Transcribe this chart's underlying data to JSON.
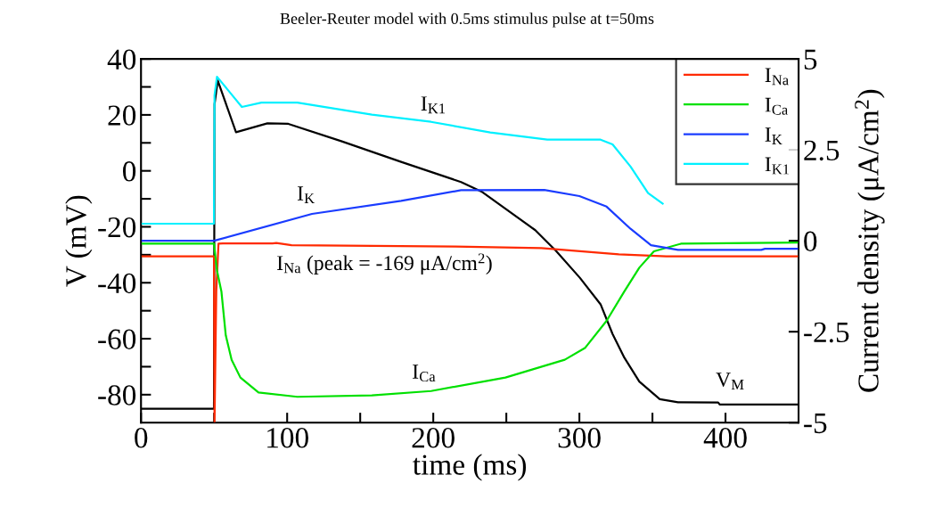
{
  "chart_data": {
    "type": "line",
    "title": "Beeler-Reuter model with 0.5ms stimulus pulse at t=50ms",
    "xlabel": "time (ms)",
    "ylabel": "V (mV)",
    "y2label": "Current density (μA/cm$^{2}$)",
    "xlim": [
      0,
      450
    ],
    "xticks": [
      0,
      {
        "value": 50,
        "label": null
      },
      100,
      {
        "value": 150,
        "label": null
      },
      200,
      {
        "value": 250,
        "label": null
      },
      300,
      {
        "value": 350,
        "label": null
      },
      400
    ],
    "ylim": [
      -90,
      40
    ],
    "yticks": [
      -80,
      {
        "value": -70,
        "label": null
      },
      -60,
      {
        "value": -50,
        "label": null
      },
      -40,
      {
        "value": -30,
        "label": null
      },
      -20,
      {
        "value": -10,
        "label": null
      },
      0,
      {
        "value": 10,
        "label": null
      },
      20,
      {
        "value": 30,
        "label": null
      },
      40
    ],
    "y2lim": [
      -5,
      5
    ],
    "y2ticks": [
      -5,
      -2.5,
      0,
      2.5,
      5
    ],
    "legend": "top right",
    "grid": false,
    "series": [
      {
        "name": "I$_{Na}$",
        "color": "#ff2a00",
        "axis": "y2",
        "x": [
          0,
          49.9,
          50.3,
          51.5,
          53,
          56,
          90,
          92.6,
          103,
          215,
          274,
          327,
          359.4,
          450
        ],
        "values": [
          -0.43,
          -0.43,
          -5,
          -1.39,
          -0.08,
          -0.07,
          -0.07,
          -0.06,
          -0.12,
          -0.16,
          -0.2,
          -0.37,
          -0.43,
          -0.43
        ]
      },
      {
        "name": "I$_{Ca}$",
        "color": "#00e000",
        "axis": "y2",
        "x": [
          0,
          49.9,
          52,
          55,
          58,
          62,
          68,
          80.4,
          107,
          158,
          198.5,
          249.4,
          290,
          304,
          318.6,
          330.8,
          341,
          351,
          369.5,
          450
        ],
        "values": [
          -0.08,
          -0.08,
          -0.82,
          -1.39,
          -2.6,
          -3.27,
          -3.76,
          -4.17,
          -4.29,
          -4.25,
          -4.13,
          -3.76,
          -3.27,
          -2.94,
          -2.2,
          -1.39,
          -0.74,
          -0.29,
          -0.08,
          -0.05
        ]
      },
      {
        "name": "I$_{K}$",
        "color": "#1a3cff",
        "axis": "y2",
        "x": [
          0,
          50,
          117,
          178,
          219,
          276,
          300,
          318.6,
          335,
          349,
          367.5,
          424.5,
          427,
          450
        ],
        "values": [
          0.0,
          0.0,
          0.74,
          1.1,
          1.39,
          1.4,
          1.23,
          0.94,
          0.33,
          -0.12,
          -0.25,
          -0.25,
          -0.22,
          -0.22
        ]
      },
      {
        "name": "I$_{K1}$",
        "color": "#00f0ff",
        "axis": "y2",
        "x": [
          0,
          49.9,
          50.3,
          52,
          69,
          82.4,
          107,
          158,
          198.5,
          239,
          278,
          314.5,
          322.7,
          335,
          347,
          357
        ],
        "values": [
          0.47,
          0.47,
          4.0,
          4.51,
          3.68,
          3.8,
          3.8,
          3.47,
          3.27,
          2.98,
          2.78,
          2.78,
          2.65,
          2.04,
          1.31,
          1.02
        ]
      },
      {
        "color": "#000000",
        "x": [
          0,
          49.9,
          50.3,
          52.5,
          65,
          86.5,
          100.8,
          137,
          178,
          219,
          233,
          269.8,
          284,
          300.3,
          314.5,
          322.7,
          330.8,
          341,
          355,
          367.5,
          395,
          396,
          450
        ],
        "values": [
          -85,
          -85,
          23.8,
          32.3,
          13.8,
          17,
          16.8,
          10.6,
          3.2,
          -4,
          -7.4,
          -21.2,
          -28.6,
          -38.2,
          -47.7,
          -58.3,
          -66.8,
          -75.3,
          -81.6,
          -82.7,
          -82.8,
          -83.5,
          -83.5
        ]
      }
    ],
    "annotations": [
      "I$_{K1}$",
      "I$_{K}$",
      "I$_{Na}$ (peak = -169 μA/cm$^{2}$)",
      "I$_{Ca}$",
      "V$_{M}$"
    ]
  }
}
